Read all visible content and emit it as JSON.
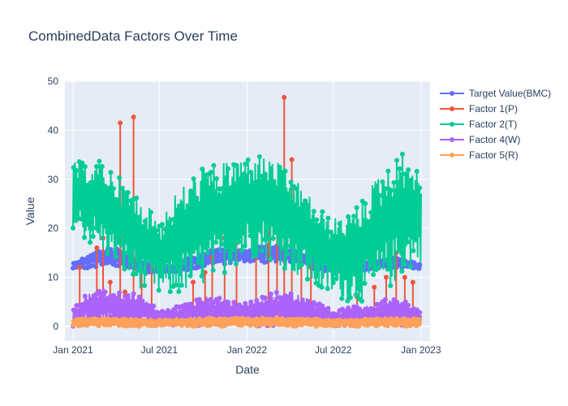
{
  "chart_data": {
    "type": "line",
    "title": "CombinedData Factors Over Time",
    "xlabel": "Date",
    "ylabel": "Value",
    "x_range": [
      "2020-12-15",
      "2023-01-20"
    ],
    "ylim": [
      -3,
      50
    ],
    "x_ticks": [
      {
        "date": "2021-01-01",
        "label": "Jan 2021"
      },
      {
        "date": "2021-07-01",
        "label": "Jul 2021"
      },
      {
        "date": "2022-01-01",
        "label": "Jan 2022"
      },
      {
        "date": "2022-07-01",
        "label": "Jul 2022"
      },
      {
        "date": "2023-01-01",
        "label": "Jan 2023"
      }
    ],
    "y_ticks": [
      0,
      10,
      20,
      30,
      40,
      50
    ],
    "grid": true,
    "legend_position": "top-right",
    "series": [
      {
        "name": "Target Value(BMC)",
        "color": "#636efa",
        "x": [
          "2021-01-01",
          "2021-02-01",
          "2021-03-01",
          "2021-04-01",
          "2021-05-01",
          "2021-06-01",
          "2021-07-01",
          "2021-08-01",
          "2021-09-01",
          "2021-10-01",
          "2021-11-01",
          "2021-12-01",
          "2022-01-01",
          "2022-02-01",
          "2022-03-01",
          "2022-04-01",
          "2022-05-01",
          "2022-06-01",
          "2022-07-01",
          "2022-08-01",
          "2022-09-01",
          "2022-10-01",
          "2022-11-01",
          "2022-12-01",
          "2023-01-01"
        ],
        "low": [
          11.5,
          11.8,
          12.0,
          12.0,
          11.5,
          11.0,
          10.8,
          11.0,
          11.5,
          12.0,
          12.5,
          12.8,
          13.0,
          13.0,
          12.8,
          12.5,
          12.0,
          11.5,
          11.0,
          11.0,
          11.2,
          11.5,
          11.8,
          11.8,
          11.5
        ],
        "high": [
          13.0,
          14.5,
          16.0,
          16.0,
          14.5,
          13.0,
          12.0,
          12.5,
          14.0,
          15.0,
          16.0,
          16.0,
          16.0,
          16.5,
          16.5,
          16.0,
          15.0,
          13.5,
          12.5,
          12.5,
          13.0,
          13.5,
          14.0,
          13.5,
          12.5
        ]
      },
      {
        "name": "Factor 1(P)",
        "color": "#ef553b",
        "x": [
          "2021-01-15",
          "2021-02-20",
          "2021-03-05",
          "2021-03-20",
          "2021-04-10",
          "2021-04-20",
          "2021-05-08",
          "2021-05-25",
          "2021-06-15",
          "2021-09-10",
          "2021-10-05",
          "2021-10-20",
          "2021-11-15",
          "2021-12-10",
          "2022-01-20",
          "2022-02-15",
          "2022-03-05",
          "2022-03-20",
          "2022-04-05",
          "2022-04-25",
          "2022-05-15",
          "2022-08-20",
          "2022-09-25",
          "2022-10-20",
          "2022-11-10",
          "2022-11-28",
          "2022-12-15"
        ],
        "values": [
          12,
          16,
          18,
          9,
          41.5,
          7,
          42.7,
          16,
          12,
          9,
          11,
          14,
          18,
          17,
          20,
          19,
          22,
          46.7,
          34,
          18,
          12,
          6,
          8,
          10,
          15,
          10,
          9
        ]
      },
      {
        "name": "Factor 2(T)",
        "color": "#00cc96",
        "x": [
          "2021-01-01",
          "2021-02-01",
          "2021-03-01",
          "2021-04-01",
          "2021-05-01",
          "2021-06-01",
          "2021-07-01",
          "2021-08-01",
          "2021-09-01",
          "2021-10-01",
          "2021-11-01",
          "2021-12-01",
          "2022-01-01",
          "2022-02-01",
          "2022-03-01",
          "2022-04-01",
          "2022-05-01",
          "2022-06-01",
          "2022-07-01",
          "2022-08-01",
          "2022-09-01",
          "2022-10-01",
          "2022-11-01",
          "2022-12-01",
          "2023-01-01"
        ],
        "low": [
          20,
          17,
          15,
          12,
          9,
          7,
          6,
          6,
          7,
          8,
          10,
          12,
          14,
          14,
          13,
          11,
          9,
          7,
          6,
          5,
          5,
          6,
          8,
          11,
          13
        ],
        "high": [
          34,
          33,
          34,
          31,
          28,
          25,
          22,
          27,
          30,
          33,
          33,
          34,
          35,
          35,
          34,
          31,
          28,
          24,
          22,
          23,
          26,
          31,
          34,
          36,
          30
        ]
      },
      {
        "name": "Factor 4(W)",
        "color": "#ab63fa",
        "x": [
          "2021-01-01",
          "2021-02-01",
          "2021-03-01",
          "2021-04-01",
          "2021-05-01",
          "2021-06-01",
          "2021-07-01",
          "2021-08-01",
          "2021-09-01",
          "2021-10-01",
          "2021-11-01",
          "2021-12-01",
          "2022-01-01",
          "2022-02-01",
          "2022-03-01",
          "2022-04-01",
          "2022-05-01",
          "2022-06-01",
          "2022-07-01",
          "2022-08-01",
          "2022-09-01",
          "2022-10-01",
          "2022-11-01",
          "2022-12-01",
          "2023-01-01"
        ],
        "low": [
          0,
          0,
          0,
          0,
          0,
          0,
          0,
          0,
          0,
          0,
          0,
          0,
          0,
          0,
          0,
          0,
          0,
          0,
          0,
          0,
          0,
          0,
          0,
          0,
          0
        ],
        "high": [
          4,
          7,
          8,
          7,
          7,
          6,
          3,
          4,
          5,
          6,
          6,
          5,
          5,
          6,
          7,
          7,
          6,
          5,
          3,
          4,
          4,
          5,
          6,
          5,
          3
        ]
      },
      {
        "name": "Factor 5(R)",
        "color": "#ffa15a",
        "x": [
          "2021-01-01",
          "2021-02-01",
          "2021-03-01",
          "2021-04-01",
          "2021-05-01",
          "2021-06-01",
          "2021-07-01",
          "2021-08-01",
          "2021-09-01",
          "2021-10-01",
          "2021-11-01",
          "2021-12-01",
          "2022-01-01",
          "2022-02-01",
          "2022-03-01",
          "2022-04-01",
          "2022-05-01",
          "2022-06-01",
          "2022-07-01",
          "2022-08-01",
          "2022-09-01",
          "2022-10-01",
          "2022-11-01",
          "2022-12-01",
          "2023-01-01"
        ],
        "low": [
          0,
          0,
          0,
          0,
          0,
          0,
          0,
          0,
          0,
          0,
          0,
          0,
          0,
          0,
          0,
          0,
          0,
          0,
          0,
          0,
          0,
          0,
          0,
          0,
          0
        ],
        "high": [
          1.5,
          1.6,
          1.7,
          1.6,
          1.5,
          1.4,
          1.3,
          1.4,
          1.5,
          1.6,
          1.7,
          1.7,
          1.7,
          1.7,
          1.8,
          1.7,
          1.6,
          1.5,
          1.4,
          1.4,
          1.5,
          1.6,
          1.7,
          1.7,
          1.5
        ]
      }
    ]
  }
}
